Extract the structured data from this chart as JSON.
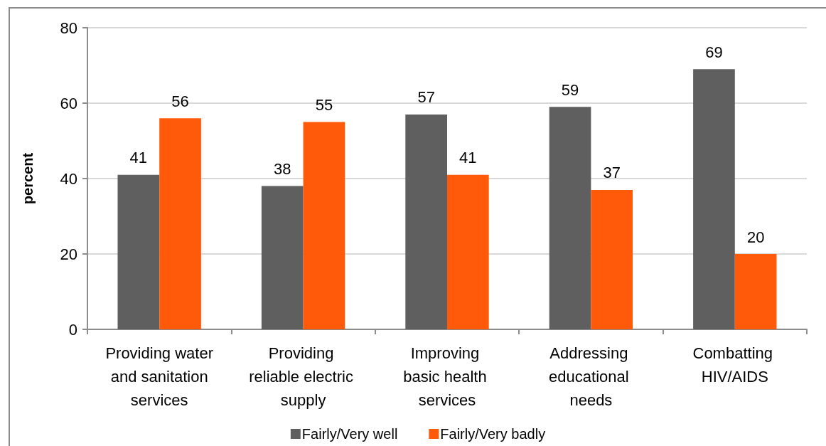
{
  "chart_data": {
    "type": "bar",
    "categories": [
      "Providing water and sanitation services",
      "Providing reliable electric supply",
      "Improving basic health services",
      "Addressing educational needs",
      "Combatting HIV/AIDS"
    ],
    "series": [
      {
        "name": "Fairly/Very well",
        "color": "#5f5f5f",
        "values": [
          41,
          38,
          57,
          59,
          69
        ]
      },
      {
        "name": "Fairly/Very badly",
        "color": "#ff5a0a",
        "values": [
          56,
          55,
          41,
          37,
          20
        ]
      }
    ],
    "ylabel": "percent",
    "ylim": [
      0,
      80
    ],
    "yticks": [
      0,
      20,
      40,
      60,
      80
    ],
    "grid": "y",
    "legend": "bottom",
    "data_labels": true
  }
}
